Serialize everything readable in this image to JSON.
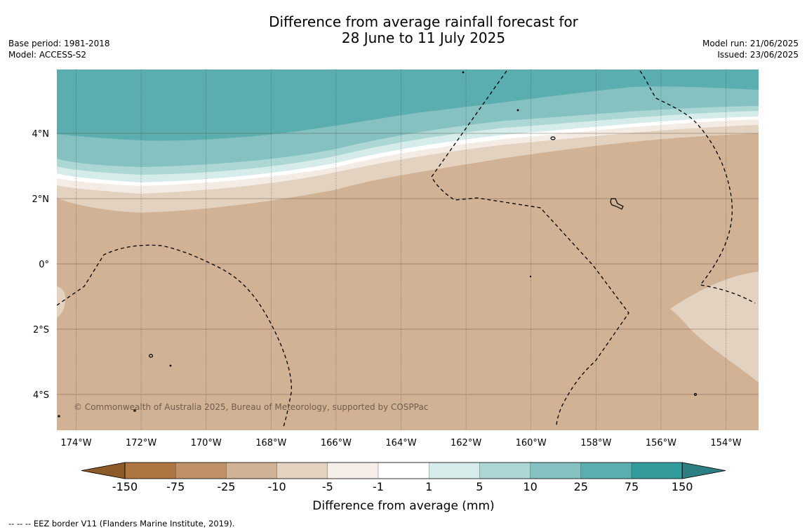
{
  "title": {
    "line1": "Difference from average rainfall forecast for",
    "line2": "28 June to 11 July 2025"
  },
  "meta_left": {
    "base_period": "Base period: 1981-2018",
    "model": "Model: ACCESS-S2"
  },
  "meta_right": {
    "model_run": "Model run: 21/06/2025",
    "issued": "Issued: 23/06/2025"
  },
  "map": {
    "lat_labels": [
      "4°N",
      "2°N",
      "0°",
      "2°S",
      "4°S"
    ],
    "lon_labels": [
      "174°W",
      "172°W",
      "170°W",
      "168°W",
      "166°W",
      "164°W",
      "162°W",
      "160°W",
      "158°W",
      "156°W",
      "154°W"
    ],
    "copyright": "© Commonwealth of Australia 2025, Bureau of Meteorology, supported by COSPPac",
    "palette": {
      "dry_heavy": "#d2b294",
      "dry_moderate": "#e4d2c0",
      "dry_light": "#f3ebe4",
      "neutral": "#ffffff",
      "wet_light": "#d6ecea",
      "wet_moderate": "#acd7d5",
      "wet_strong": "#84c1c0",
      "wet_heavy": "#5baeaf"
    }
  },
  "colorbar": {
    "ticks": [
      "-150",
      "-75",
      "-25",
      "-10",
      "-5",
      "-1",
      "1",
      "5",
      "10",
      "25",
      "75",
      "150"
    ],
    "colors": [
      "#ad7640",
      "#c09068",
      "#d2b294",
      "#e4d2c0",
      "#f6efe9",
      "#ffffff",
      "#d6ecea",
      "#acd7d5",
      "#84c1c0",
      "#5baeaf",
      "#349b9c"
    ],
    "end_low": "#8e5a2a",
    "end_high": "#2c7f80",
    "label": "Difference from average (mm)"
  },
  "footer": "--  --  -- EEZ border V11 (Flanders Marine Institute, 2019)."
}
